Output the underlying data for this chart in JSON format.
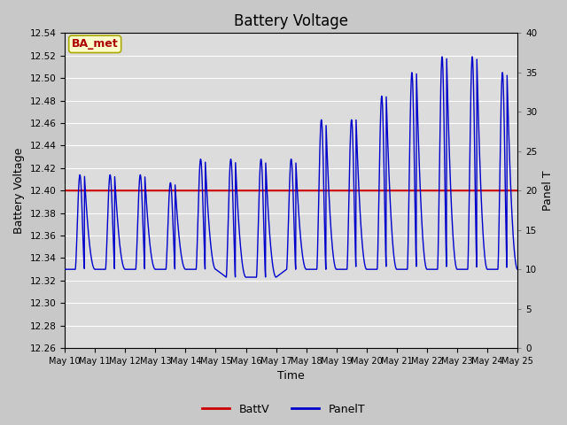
{
  "title": "Battery Voltage",
  "xlabel": "Time",
  "ylabel_left": "Battery Voltage",
  "ylabel_right": "Panel T",
  "ylim_left": [
    12.26,
    12.54
  ],
  "ylim_right": [
    0,
    40
  ],
  "xtick_labels": [
    "May 10",
    "May 11",
    "May 12",
    "May 13",
    "May 14",
    "May 15",
    "May 16",
    "May 17",
    "May 18",
    "May 19",
    "May 20",
    "May 21",
    "May 22",
    "May 23",
    "May 24",
    "May 25"
  ],
  "batt_v": 12.4,
  "batt_color": "#cc0000",
  "panel_color": "#0000cc",
  "plot_bg_color": "#dcdcdc",
  "fig_bg_color": "#c8c8c8",
  "annotation_text": "BA_met",
  "annotation_bg": "#ffffcc",
  "annotation_border": "#aaaa00",
  "annotation_text_color": "#aa0000",
  "legend_labels": [
    "BattV",
    "PanelT"
  ],
  "right_yticks": [
    0,
    5,
    10,
    15,
    20,
    25,
    30,
    35,
    40
  ],
  "left_ticks": [
    12.26,
    12.28,
    12.3,
    12.32,
    12.34,
    12.36,
    12.38,
    12.4,
    12.42,
    12.44,
    12.46,
    12.48,
    12.5,
    12.52,
    12.54
  ],
  "title_fontsize": 12,
  "n_days": 15
}
